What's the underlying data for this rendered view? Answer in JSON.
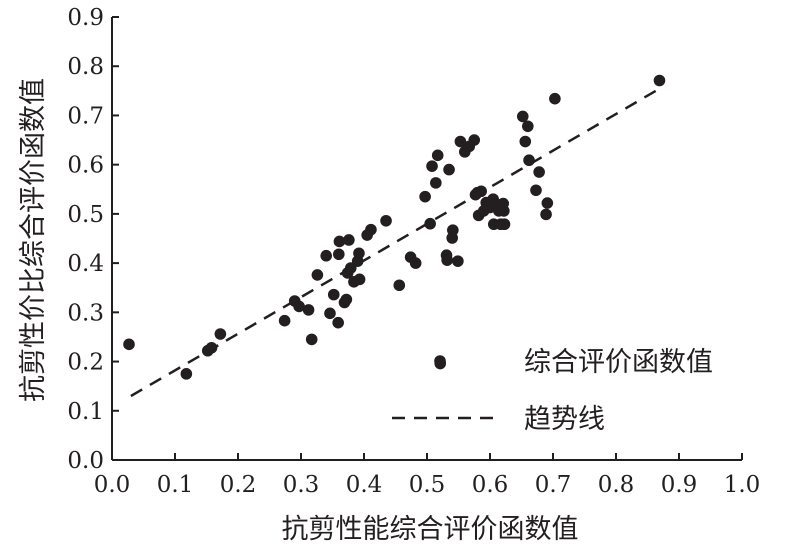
{
  "chart_data": {
    "type": "scatter",
    "xlabel": "抗剪性能综合评价函数值",
    "ylabel": "抗剪性价比综合评价函数值",
    "xlim": [
      0.0,
      1.0
    ],
    "ylim": [
      0.0,
      0.9
    ],
    "x_ticks": [
      "0.0",
      "0.1",
      "0.2",
      "0.3",
      "0.4",
      "0.5",
      "0.6",
      "0.7",
      "0.8",
      "0.9",
      "1.0"
    ],
    "y_ticks": [
      "0.0",
      "0.1",
      "0.2",
      "0.3",
      "0.4",
      "0.5",
      "0.6",
      "0.7",
      "0.8",
      "0.9"
    ],
    "grid": false,
    "legend_position": "bottom-right",
    "series": [
      {
        "name": "综合评价函数值",
        "marker": "filled-circle",
        "color": "#231f20",
        "points": [
          [
            0.027,
            0.235
          ],
          [
            0.118,
            0.175
          ],
          [
            0.152,
            0.222
          ],
          [
            0.158,
            0.228
          ],
          [
            0.172,
            0.256
          ],
          [
            0.274,
            0.283
          ],
          [
            0.29,
            0.323
          ],
          [
            0.297,
            0.312
          ],
          [
            0.312,
            0.305
          ],
          [
            0.317,
            0.245
          ],
          [
            0.326,
            0.376
          ],
          [
            0.34,
            0.415
          ],
          [
            0.346,
            0.298
          ],
          [
            0.352,
            0.336
          ],
          [
            0.359,
            0.279
          ],
          [
            0.36,
            0.418
          ],
          [
            0.361,
            0.444
          ],
          [
            0.369,
            0.32
          ],
          [
            0.372,
            0.326
          ],
          [
            0.374,
            0.38
          ],
          [
            0.376,
            0.447
          ],
          [
            0.379,
            0.39
          ],
          [
            0.384,
            0.362
          ],
          [
            0.39,
            0.404
          ],
          [
            0.392,
            0.42
          ],
          [
            0.393,
            0.367
          ],
          [
            0.405,
            0.457
          ],
          [
            0.411,
            0.468
          ],
          [
            0.435,
            0.486
          ],
          [
            0.456,
            0.355
          ],
          [
            0.474,
            0.412
          ],
          [
            0.482,
            0.4
          ],
          [
            0.497,
            0.535
          ],
          [
            0.505,
            0.48
          ],
          [
            0.508,
            0.597
          ],
          [
            0.514,
            0.563
          ],
          [
            0.517,
            0.619
          ],
          [
            0.521,
            0.196
          ],
          [
            0.531,
            0.416
          ],
          [
            0.532,
            0.406
          ],
          [
            0.535,
            0.59
          ],
          [
            0.54,
            0.451
          ],
          [
            0.541,
            0.467
          ],
          [
            0.549,
            0.404
          ],
          [
            0.553,
            0.647
          ],
          [
            0.56,
            0.626
          ],
          [
            0.567,
            0.637
          ],
          [
            0.575,
            0.65
          ],
          [
            0.577,
            0.539
          ],
          [
            0.58,
            0.543
          ],
          [
            0.582,
            0.497
          ],
          [
            0.586,
            0.546
          ],
          [
            0.59,
            0.506
          ],
          [
            0.594,
            0.523
          ],
          [
            0.6,
            0.513
          ],
          [
            0.605,
            0.53
          ],
          [
            0.606,
            0.479
          ],
          [
            0.612,
            0.519
          ],
          [
            0.614,
            0.506
          ],
          [
            0.617,
            0.479
          ],
          [
            0.621,
            0.521
          ],
          [
            0.622,
            0.506
          ],
          [
            0.623,
            0.479
          ],
          [
            0.652,
            0.698
          ],
          [
            0.656,
            0.647
          ],
          [
            0.66,
            0.678
          ],
          [
            0.662,
            0.609
          ],
          [
            0.673,
            0.548
          ],
          [
            0.678,
            0.585
          ],
          [
            0.689,
            0.499
          ],
          [
            0.691,
            0.522
          ],
          [
            0.703,
            0.734
          ],
          [
            0.869,
            0.771
          ]
        ]
      },
      {
        "name": "趋势线",
        "type": "line",
        "style": "dashed",
        "color": "#231f20",
        "points": [
          [
            0.03,
            0.13
          ],
          [
            0.87,
            0.755
          ]
        ]
      }
    ]
  }
}
